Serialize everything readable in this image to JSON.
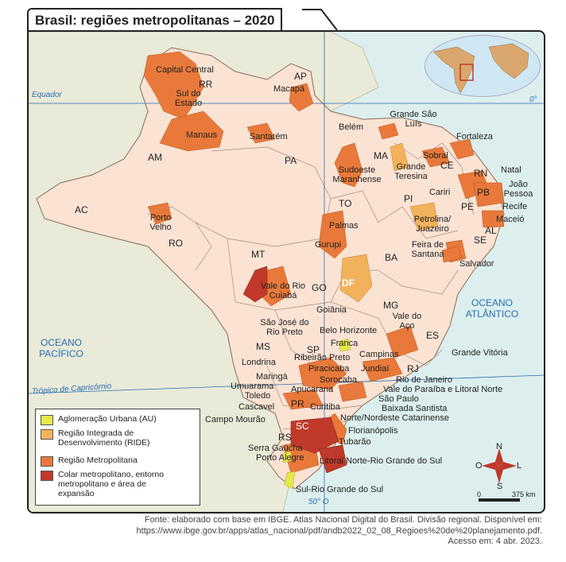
{
  "title": "Brasil: regiões metropolitanas – 2020",
  "colors": {
    "ocean": "#dcefee",
    "brazil": "#fbe3d4",
    "neighbors": "#e9ead7",
    "aglomeracao": "#e6e94a",
    "ride": "#f2b25c",
    "regiao_metropolitana": "#e8793a",
    "colar": "#c0392b",
    "lines": "#2a6db8"
  },
  "lines": {
    "equator": "Equador",
    "equator_deg": "0°",
    "tropic": "Trópico de Capricórnio",
    "meridian": "50° O"
  },
  "oceans": {
    "atlantic": "OCEANO ATLÂNTICO",
    "pacific": "OCEANO PACÍFICO"
  },
  "states": [
    "RR",
    "AP",
    "AM",
    "PA",
    "MA",
    "CE",
    "RN",
    "PB",
    "PE",
    "AL",
    "SE",
    "PI",
    "TO",
    "BA",
    "AC",
    "RO",
    "MT",
    "GO",
    "DF",
    "MG",
    "ES",
    "RJ",
    "SP",
    "MS",
    "PR",
    "SC",
    "RS"
  ],
  "regions": [
    "Capital Central",
    "Sul do Estado",
    "Macapá",
    "Manaus",
    "Santarém",
    "Belém",
    "Grande São Luís",
    "Fortaleza",
    "Sobral",
    "Grande Teresina",
    "Sudoeste Maranhense",
    "Natal",
    "João Pessoa",
    "Cariri",
    "Recife",
    "Petrolina/ Juazeiro",
    "Maceió",
    "Porto Velho",
    "Palmas",
    "Gurupi",
    "Feira de Santana",
    "Salvador",
    "Vale do Rio Cuiabá",
    "Goiânia",
    "Vale do Aço",
    "São José do Rio Preto",
    "Belo Horizonte",
    "Franca",
    "Ribeirão Preto",
    "Campinas",
    "Grande Vitória",
    "Londrina",
    "Piracicaba",
    "Jundiaí",
    "Rio de Janeiro",
    "Maringá",
    "Sorocaba",
    "Vale do Paraíba e Litoral Norte",
    "Umuarama",
    "Apucarana",
    "São Paulo",
    "Toledo",
    "Baixada Santista",
    "Cascavel",
    "Curitiba",
    "Norte/Nordeste Catarinense",
    "Campo Mourão",
    "Florianópolis",
    "Tubarão",
    "Serra Gaúcha",
    "Porto Alegre",
    "Litoral Norte-Rio Grande do Sul",
    "Sul-Rio Grande do Sul"
  ],
  "legend": [
    {
      "label": "Aglomeração Urbana (AU)",
      "color": "#e6e94a"
    },
    {
      "label": "Região Integrada de Desenvolvimento (RIDE)",
      "color": "#f2b25c"
    },
    {
      "label": "Região Metropolitana",
      "color": "#e8793a"
    },
    {
      "label": "Colar metropolitano, entorno metropolitano e área de expansão",
      "color": "#c0392b"
    }
  ],
  "compass": {
    "n": "N",
    "s": "S",
    "l": "L",
    "o": "O"
  },
  "scale": {
    "zero": "0",
    "distance": "375 km"
  },
  "source": [
    "Fonte: elaborado com base em IBGE. Atlas Nacional Digital do Brasil. Divisão regional. Disponível em:",
    "https://www.ibge.gov.br/apps/atlas_nacional/pdf/andb2022_02_08_Regioes%20de%20planejamento.pdf.",
    "Acesso em: 4 abr. 2023."
  ]
}
